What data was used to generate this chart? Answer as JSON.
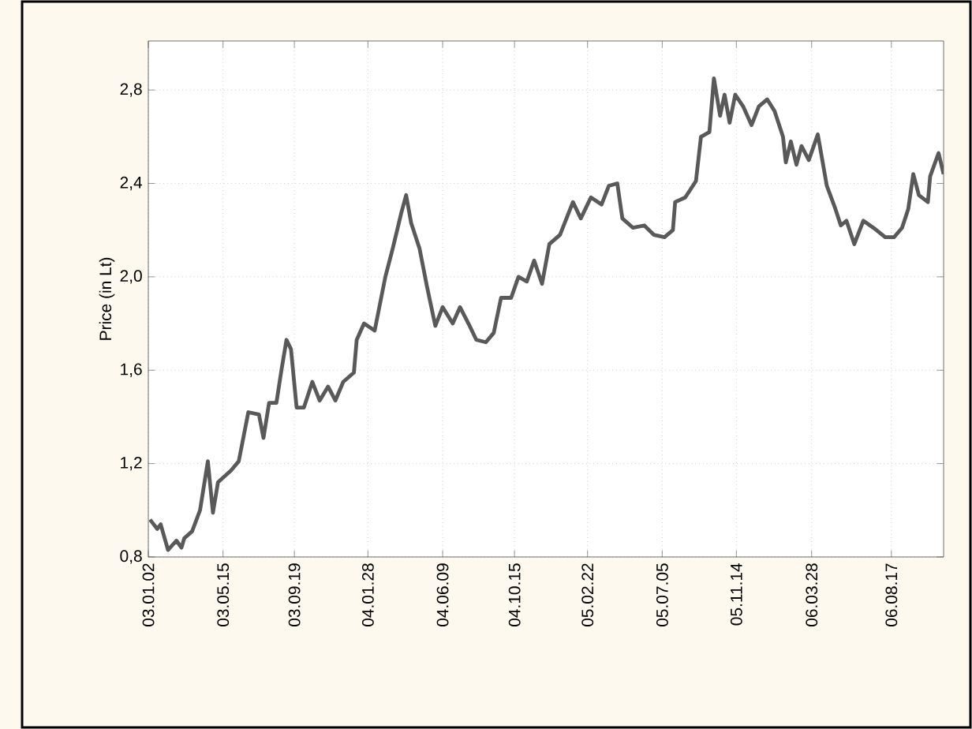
{
  "chart_data": {
    "type": "line",
    "ylabel": "Price (in Lt)",
    "x": [
      "2003-01-05",
      "2003-01-18",
      "2003-01-24",
      "2003-02-06",
      "2003-02-21",
      "2003-03-02",
      "2003-03-07",
      "2003-03-21",
      "2003-04-04",
      "2003-04-18",
      "2003-04-27",
      "2003-05-06",
      "2003-05-29",
      "2003-06-12",
      "2003-06-29",
      "2003-07-18",
      "2003-07-26",
      "2003-08-05",
      "2003-08-18",
      "2003-08-27",
      "2003-09-05",
      "2003-09-13",
      "2003-09-23",
      "2003-10-06",
      "2003-10-21",
      "2003-11-03",
      "2003-11-18",
      "2003-12-01",
      "2003-12-15",
      "2004-01-03",
      "2004-01-08",
      "2004-01-21",
      "2004-02-09",
      "2004-02-28",
      "2004-03-12",
      "2004-03-27",
      "2004-04-05",
      "2004-04-14",
      "2004-04-29",
      "2004-05-12",
      "2004-05-27",
      "2004-06-09",
      "2004-06-27",
      "2004-07-10",
      "2004-07-25",
      "2004-08-08",
      "2004-08-25",
      "2004-09-08",
      "2004-09-21",
      "2004-10-09",
      "2004-10-22",
      "2004-11-06",
      "2004-11-19",
      "2004-12-03",
      "2004-12-16",
      "2005-01-04",
      "2005-01-27",
      "2005-02-10",
      "2005-02-28",
      "2005-03-19",
      "2005-04-01",
      "2005-04-16",
      "2005-04-25",
      "2005-05-14",
      "2005-06-03",
      "2005-06-20",
      "2005-07-09",
      "2005-07-24",
      "2005-07-28",
      "2005-08-15",
      "2005-09-03",
      "2005-09-12",
      "2005-09-27",
      "2005-10-05",
      "2005-10-16",
      "2005-10-24",
      "2005-11-02",
      "2005-11-12",
      "2005-11-26",
      "2005-12-11",
      "2005-12-24",
      "2006-01-08",
      "2006-01-21",
      "2006-02-05",
      "2006-02-10",
      "2006-02-19",
      "2006-03-01",
      "2006-03-10",
      "2006-03-23",
      "2006-04-08",
      "2006-04-24",
      "2006-05-08",
      "2006-05-19",
      "2006-05-29",
      "2006-06-12",
      "2006-06-28",
      "2006-07-16",
      "2006-08-06",
      "2006-08-22",
      "2006-09-05",
      "2006-09-16",
      "2006-09-25",
      "2006-10-05",
      "2006-10-21",
      "2006-10-25",
      "2006-11-09",
      "2006-11-18"
    ],
    "series": [
      {
        "color": "#595959",
        "values": [
          0.96,
          0.92,
          0.94,
          0.83,
          0.87,
          0.84,
          0.88,
          0.91,
          1.0,
          1.21,
          0.99,
          1.12,
          1.17,
          1.21,
          1.42,
          1.41,
          1.31,
          1.46,
          1.46,
          1.6,
          1.73,
          1.69,
          1.44,
          1.44,
          1.55,
          1.47,
          1.53,
          1.47,
          1.55,
          1.59,
          1.73,
          1.8,
          1.77,
          2.0,
          2.12,
          2.27,
          2.35,
          2.23,
          2.12,
          1.96,
          1.79,
          1.87,
          1.8,
          1.87,
          1.8,
          1.73,
          1.72,
          1.76,
          1.91,
          1.91,
          2.0,
          1.98,
          2.07,
          1.97,
          2.14,
          2.18,
          2.32,
          2.25,
          2.34,
          2.31,
          2.39,
          2.4,
          2.25,
          2.21,
          2.22,
          2.18,
          2.17,
          2.2,
          2.32,
          2.34,
          2.41,
          2.6,
          2.62,
          2.85,
          2.69,
          2.78,
          2.66,
          2.78,
          2.73,
          2.65,
          2.73,
          2.76,
          2.71,
          2.6,
          2.49,
          2.58,
          2.48,
          2.56,
          2.5,
          2.61,
          2.39,
          2.3,
          2.22,
          2.24,
          2.14,
          2.24,
          2.21,
          2.17,
          2.17,
          2.21,
          2.29,
          2.44,
          2.35,
          2.32,
          2.43,
          2.53,
          2.44
        ]
      }
    ],
    "xlim": [
      "2003-01-02",
      "2006-11-18"
    ],
    "xticks": [
      {
        "value": "2003-01-02",
        "label": "03.01.02"
      },
      {
        "value": "2003-05-15",
        "label": "03.05.15"
      },
      {
        "value": "2003-09-19",
        "label": "03.09.19"
      },
      {
        "value": "2004-01-28",
        "label": "04.01.28"
      },
      {
        "value": "2004-06-09",
        "label": "04.06.09"
      },
      {
        "value": "2004-10-15",
        "label": "04.10.15"
      },
      {
        "value": "2005-02-22",
        "label": "05.02.22"
      },
      {
        "value": "2005-07-05",
        "label": "05.07.05"
      },
      {
        "value": "2005-11-14",
        "label": "05.11.14"
      },
      {
        "value": "2006-03-28",
        "label": "06.03.28"
      },
      {
        "value": "2006-08-17",
        "label": "06.08.17"
      }
    ],
    "ylim": [
      0.8,
      3.01
    ],
    "yticks": [
      {
        "value": 0.8,
        "label": "0,8"
      },
      {
        "value": 1.2,
        "label": "1,2"
      },
      {
        "value": 1.6,
        "label": "1,6"
      },
      {
        "value": 2.0,
        "label": "2,0"
      },
      {
        "value": 2.4,
        "label": "2,4"
      },
      {
        "value": 2.8,
        "label": "2,8"
      }
    ],
    "grid": true,
    "line_style": "solid",
    "marker": "none"
  }
}
